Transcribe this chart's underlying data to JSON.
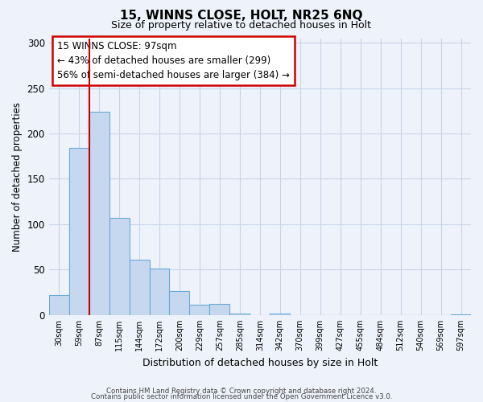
{
  "title": "15, WINNS CLOSE, HOLT, NR25 6NQ",
  "subtitle": "Size of property relative to detached houses in Holt",
  "xlabel": "Distribution of detached houses by size in Holt",
  "ylabel": "Number of detached properties",
  "bar_color": "#c5d8f0",
  "bar_edge_color": "#6aaad4",
  "bin_labels": [
    "30sqm",
    "59sqm",
    "87sqm",
    "115sqm",
    "144sqm",
    "172sqm",
    "200sqm",
    "229sqm",
    "257sqm",
    "285sqm",
    "314sqm",
    "342sqm",
    "370sqm",
    "399sqm",
    "427sqm",
    "455sqm",
    "484sqm",
    "512sqm",
    "540sqm",
    "569sqm",
    "597sqm"
  ],
  "bar_values": [
    22,
    184,
    224,
    107,
    61,
    51,
    26,
    11,
    12,
    2,
    0,
    2,
    0,
    0,
    0,
    0,
    0,
    0,
    0,
    0,
    1
  ],
  "ylim": [
    0,
    305
  ],
  "yticks": [
    0,
    50,
    100,
    150,
    200,
    250,
    300
  ],
  "property_line_label": "15 WINNS CLOSE: 97sqm",
  "annotation_line1": "← 43% of detached houses are smaller (299)",
  "annotation_line2": "56% of semi-detached houses are larger (384) →",
  "annotation_box_color": "white",
  "annotation_box_edge_color": "#cc0000",
  "vline_color": "#cc0000",
  "vline_position": 1.5,
  "grid_color": "#c8d4e8",
  "background_color": "#eef2fb",
  "footer1": "Contains HM Land Registry data © Crown copyright and database right 2024.",
  "footer2": "Contains public sector information licensed under the Open Government Licence v3.0."
}
